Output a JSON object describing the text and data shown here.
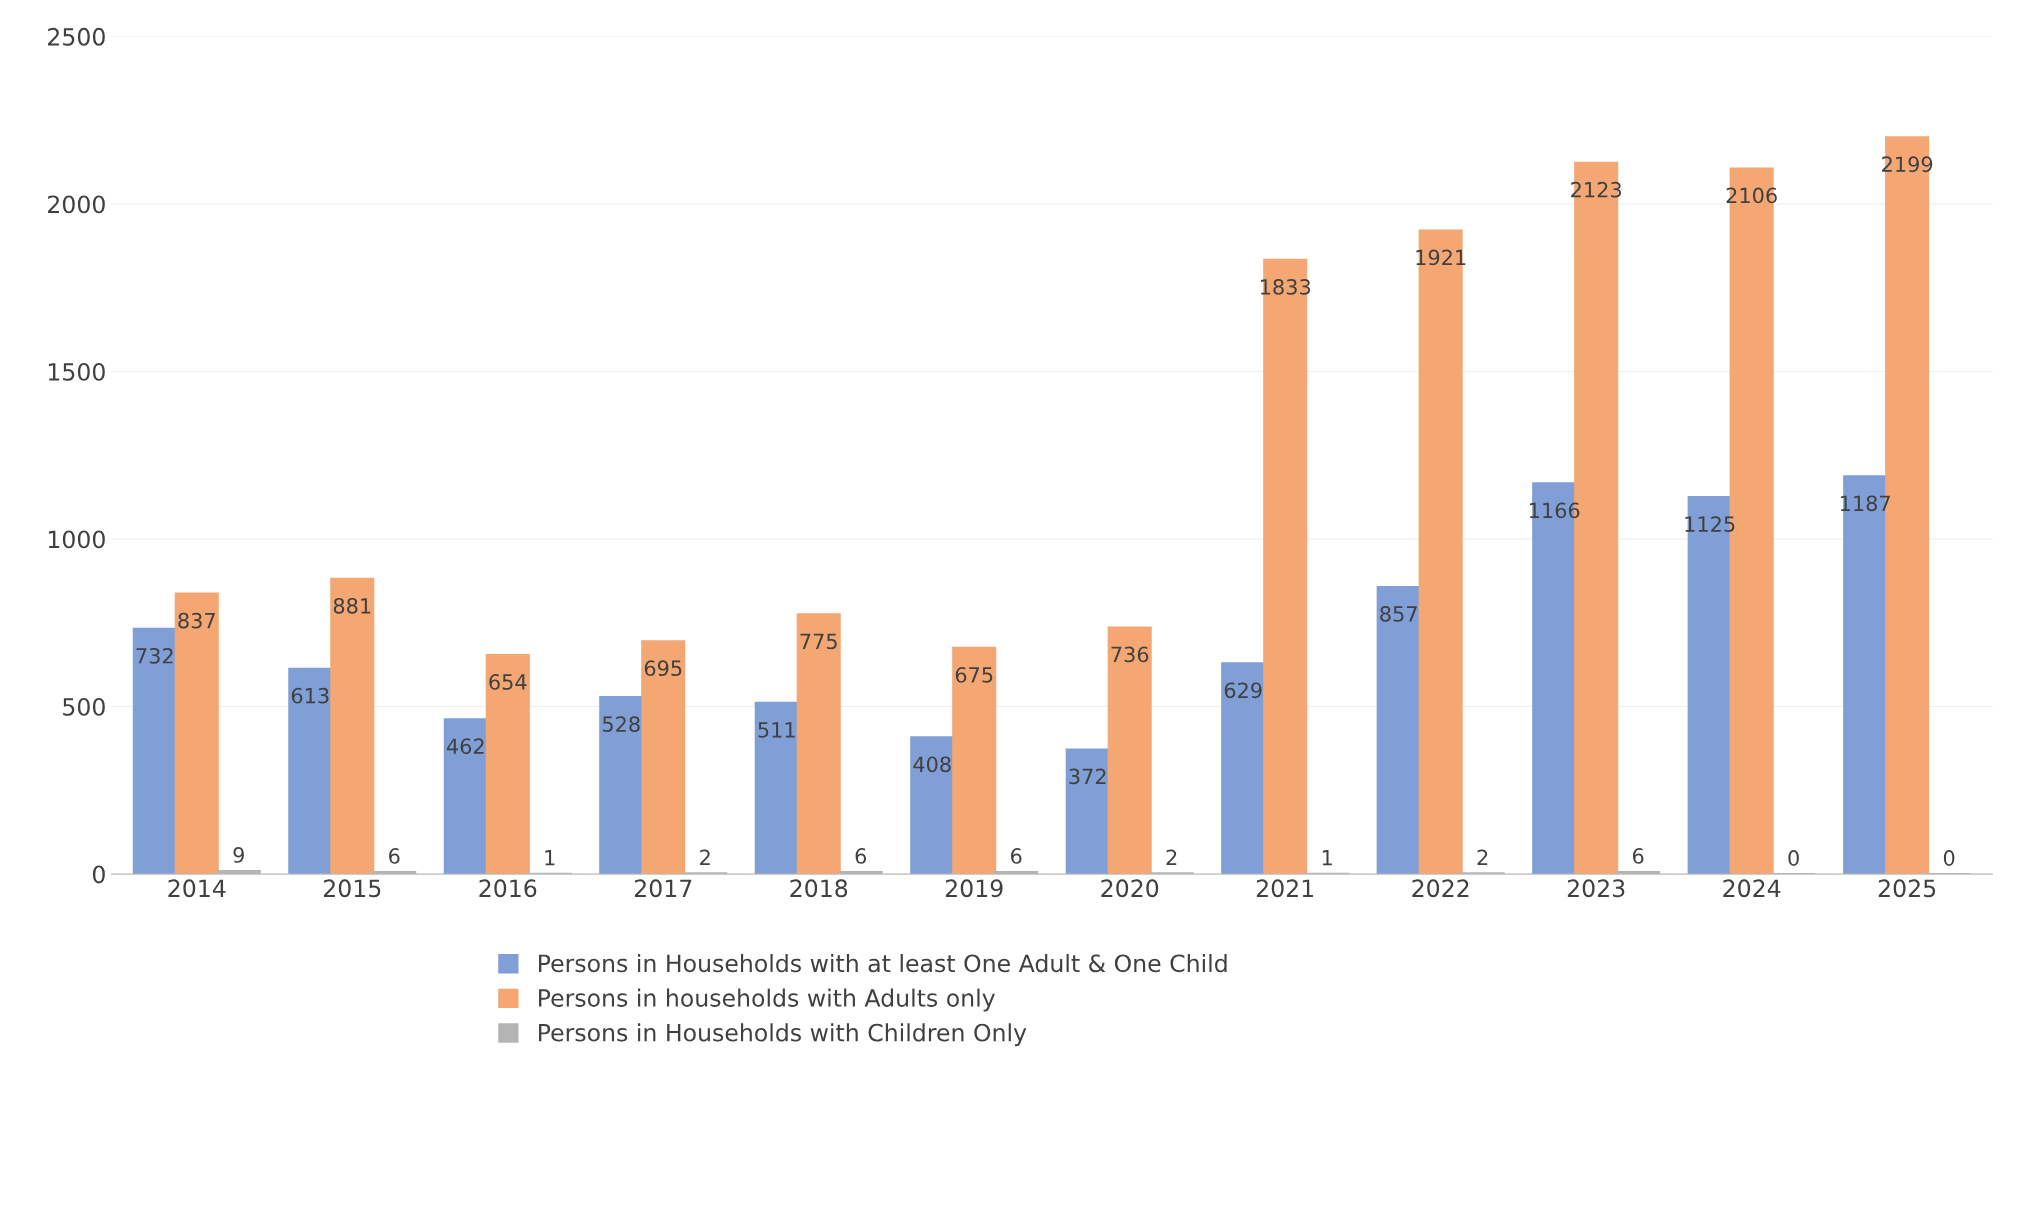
{
  "chart_data": {
    "type": "bar",
    "categories": [
      "2014",
      "2015",
      "2016",
      "2017",
      "2018",
      "2019",
      "2020",
      "2021",
      "2022",
      "2023",
      "2024",
      "2025"
    ],
    "series": [
      {
        "name": "Persons in Households with at least One Adult & One Child",
        "color": "#7f9fd6",
        "values": [
          732,
          613,
          462,
          528,
          511,
          408,
          372,
          629,
          857,
          1166,
          1125,
          1187
        ]
      },
      {
        "name": "Persons in households with Adults only",
        "color": "#f4a772",
        "values": [
          837,
          881,
          654,
          695,
          775,
          675,
          736,
          1833,
          1921,
          2123,
          2106,
          2199
        ]
      },
      {
        "name": "Persons in Households with Children Only",
        "color": "#b4b4b4",
        "values": [
          9,
          6,
          1,
          2,
          6,
          6,
          2,
          1,
          2,
          6,
          0,
          0
        ]
      }
    ],
    "ylim": [
      0,
      2500
    ],
    "yticks": [
      0,
      500,
      1000,
      1500,
      2000,
      2500
    ],
    "grid": "y",
    "legend": "bottom",
    "data_labels": true
  }
}
